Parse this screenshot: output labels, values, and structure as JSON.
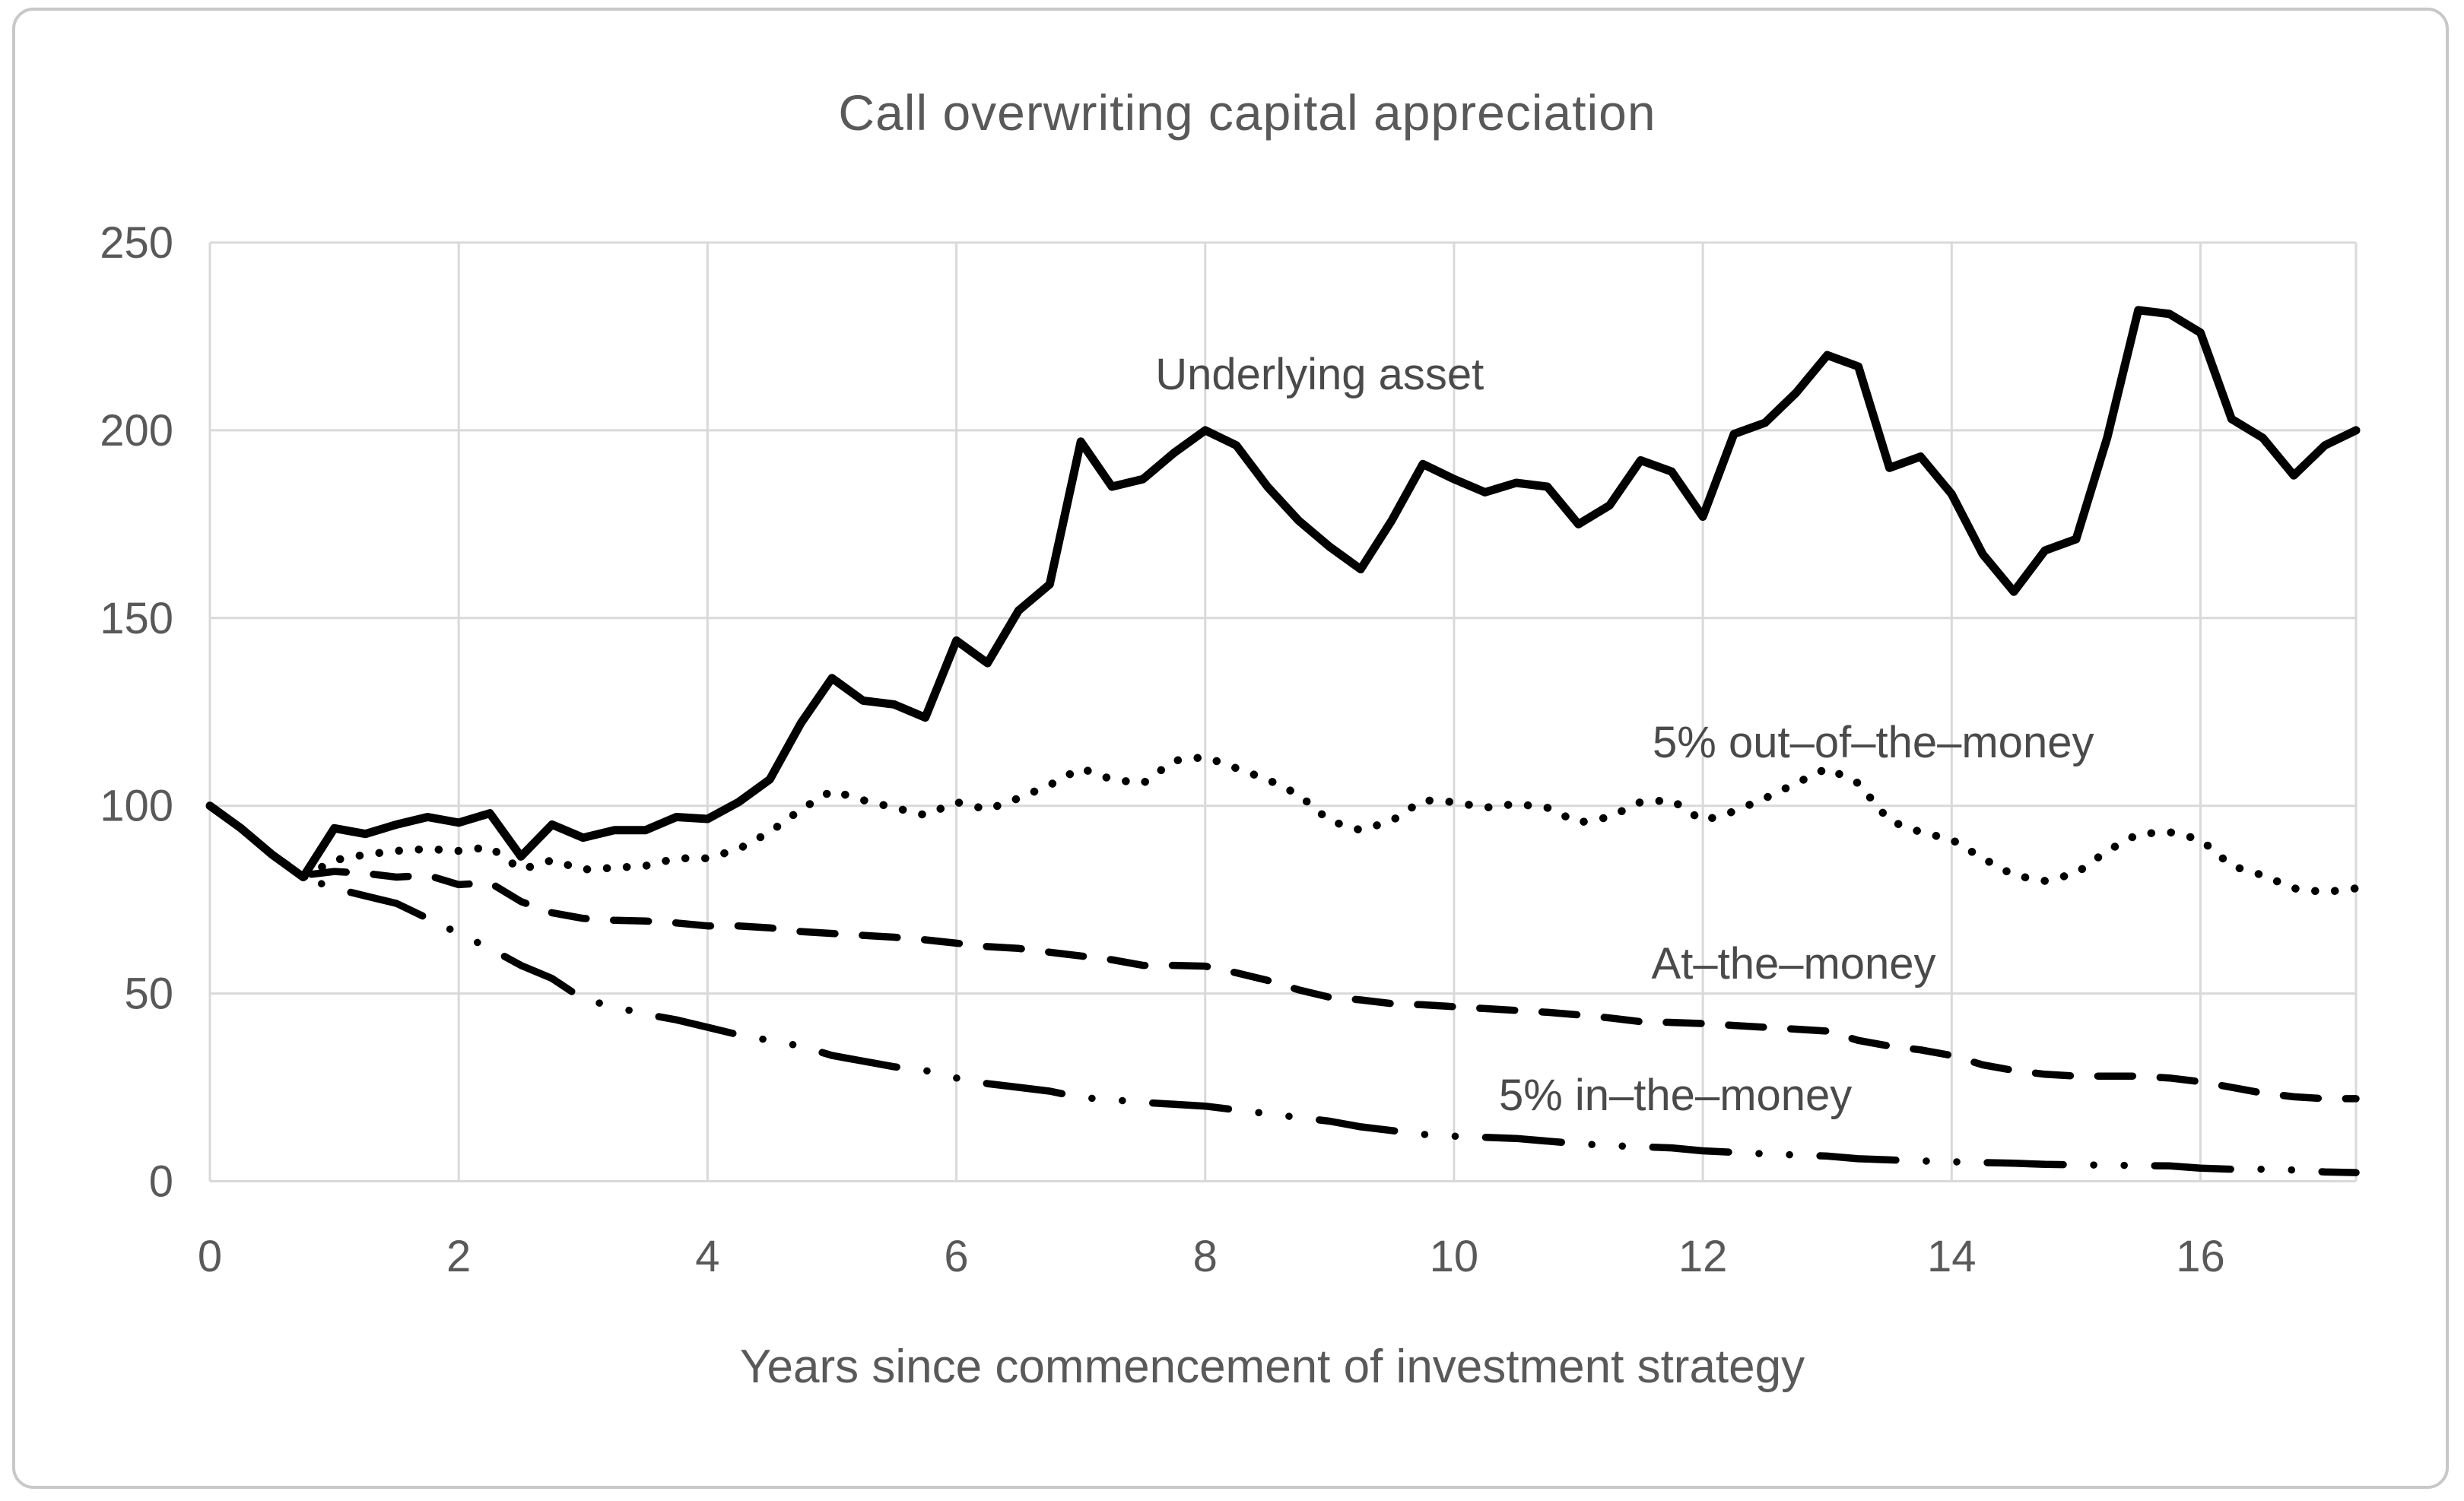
{
  "title": "Call overwriting capital appreciation",
  "x_axis": {
    "label": "Years since commencement of investment strategy",
    "ticks": [
      0,
      2,
      4,
      6,
      8,
      10,
      12,
      14,
      16
    ]
  },
  "y_axis": {
    "ticks": [
      0,
      50,
      100,
      150,
      200,
      250
    ]
  },
  "colors": {
    "line": "#000000",
    "grid": "#d9d9d9",
    "text": "#595959",
    "annotation_text": "#4a4a4a",
    "border": "#c9c7c7"
  },
  "chart_data": {
    "type": "line",
    "title": "Call overwriting capital appreciation",
    "xlabel": "Years since commencement of investment strategy",
    "ylabel": "",
    "xlim": [
      0,
      17.25
    ],
    "ylim": [
      0,
      250
    ],
    "grid": true,
    "legend_position": "inline-annotations",
    "x_start": 0,
    "x_step": 0.25,
    "series": [
      {
        "name": "Underlying asset",
        "style": "solid",
        "values": [
          100,
          94,
          87,
          81,
          94,
          92.5,
          95,
          97,
          95.5,
          98,
          86.5,
          95,
          91.5,
          93.5,
          93.5,
          97,
          96.5,
          101,
          107,
          122,
          134,
          128,
          127,
          123.5,
          144,
          138,
          152,
          159,
          197,
          185,
          187,
          194,
          200,
          196,
          185,
          176,
          169,
          163,
          176,
          191,
          187,
          183.5,
          186,
          185,
          175,
          180,
          192,
          189,
          177,
          199,
          202,
          210,
          220,
          217,
          190,
          193,
          183,
          167,
          157,
          168,
          171,
          198,
          232,
          231,
          226,
          203,
          198,
          188,
          196,
          200
        ]
      },
      {
        "name": "5% out–of–the–money",
        "style": "dotted",
        "values": [
          100,
          94,
          87,
          81,
          85.5,
          87,
          88,
          88.5,
          88,
          89,
          83,
          85.5,
          83,
          83.5,
          84,
          86,
          86,
          88.5,
          93,
          99,
          104,
          101.5,
          99.5,
          97.5,
          101,
          99,
          102,
          105.5,
          110,
          107,
          106,
          112,
          113,
          110,
          107,
          103,
          96,
          93.5,
          96,
          101.5,
          101,
          99.5,
          100.5,
          99.5,
          95.5,
          97,
          101,
          101.5,
          96,
          98.5,
          102,
          106,
          110,
          106,
          96,
          93,
          91,
          86,
          81.5,
          80,
          82,
          88,
          92.5,
          93,
          91,
          84,
          81.5,
          78,
          77,
          78
        ]
      },
      {
        "name": "At–the–money",
        "style": "dashed",
        "values": [
          100,
          94,
          87,
          81.5,
          82.5,
          82,
          81,
          81.5,
          79,
          79.5,
          74.5,
          71.5,
          70,
          69.5,
          69.3,
          68.8,
          68,
          68,
          67.5,
          66.5,
          66,
          65.5,
          65,
          64.3,
          63.4,
          62.5,
          62,
          61,
          60,
          59,
          57.5,
          57.5,
          57.3,
          55.5,
          53.5,
          51,
          49,
          48.3,
          47.3,
          47,
          46.5,
          46,
          45.5,
          45,
          44.3,
          43.5,
          42.5,
          42.3,
          42,
          41.5,
          41,
          40.5,
          40,
          37.5,
          36,
          35,
          33.5,
          31,
          29.5,
          28.5,
          28,
          28,
          28,
          27.5,
          26.5,
          25,
          23.5,
          22.5,
          22,
          22
        ]
      },
      {
        "name": "5% in–the–money",
        "style": "long-dash-dot-dot",
        "values": [
          100,
          94,
          87,
          81,
          78,
          76,
          74,
          70,
          66,
          62,
          57.5,
          54,
          48.5,
          46.5,
          44.5,
          43,
          41,
          39,
          37.5,
          36,
          33.5,
          32,
          30.5,
          29.5,
          27.5,
          26,
          25,
          24,
          22.3,
          21.7,
          21,
          20.5,
          20,
          19,
          18,
          17,
          16,
          14.5,
          13.5,
          12.5,
          12,
          11.7,
          11.4,
          10.7,
          10,
          9.5,
          9.2,
          8.9,
          8.1,
          7.7,
          7.3,
          7,
          6.7,
          6,
          5.7,
          5.4,
          5.2,
          5,
          4.8,
          4.5,
          4.4,
          4.3,
          4.2,
          4.1,
          3.5,
          3.2,
          3.2,
          3,
          2.5,
          2.3
        ]
      }
    ],
    "annotations": [
      {
        "text": "Underlying asset",
        "x": 8.92,
        "y": 215
      },
      {
        "text": "5% out–of–the–money",
        "x": 13.37,
        "y": 117
      },
      {
        "text": "At–the–money",
        "x": 12.73,
        "y": 58
      },
      {
        "text": "5% in–the–money",
        "x": 11.78,
        "y": 23
      }
    ]
  }
}
